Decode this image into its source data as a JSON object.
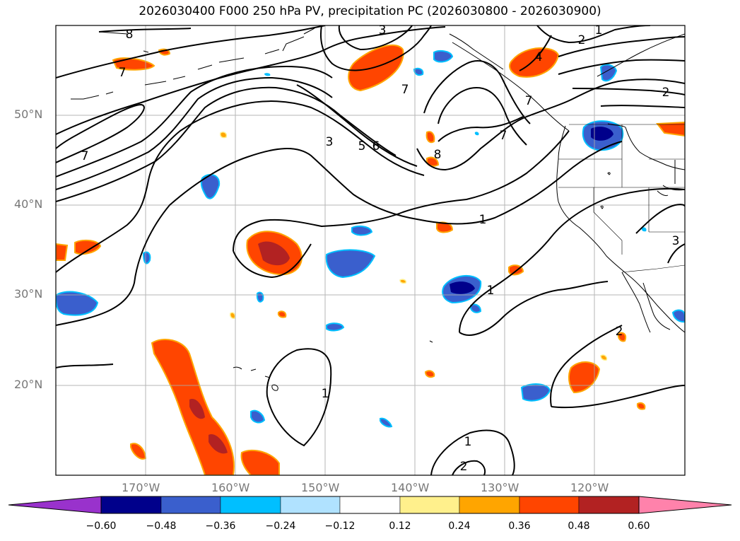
{
  "title": "2026030400 F000 250 hPa PV, precipitation PC (2026030800 - 2026030900)",
  "lon_labels": [
    "170°W",
    "160°W",
    "150°W",
    "140°W",
    "130°W",
    "120°W"
  ],
  "lat_labels": [
    "50°N",
    "40°N",
    "30°N",
    "20°N"
  ],
  "contour_labels": [
    "8",
    "3",
    "1",
    "2",
    "4",
    "7",
    "7",
    "2",
    "7",
    "7",
    "3",
    "5",
    "6",
    "8",
    "7",
    "1",
    "1",
    "3",
    "2",
    "1",
    "1",
    "2"
  ],
  "colorbar": {
    "ticks": [
      "−0.60",
      "−0.48",
      "−0.36",
      "−0.24",
      "−0.12",
      "0.12",
      "0.24",
      "0.36",
      "0.48",
      "0.60"
    ],
    "colors": [
      "#9932cc",
      "#00008b",
      "#3a5fcd",
      "#00bfff",
      "#b0e2ff",
      "#ffffff",
      "#fff08c",
      "#ffa500",
      "#ff4500",
      "#b22222",
      "#ff82ab"
    ]
  }
}
